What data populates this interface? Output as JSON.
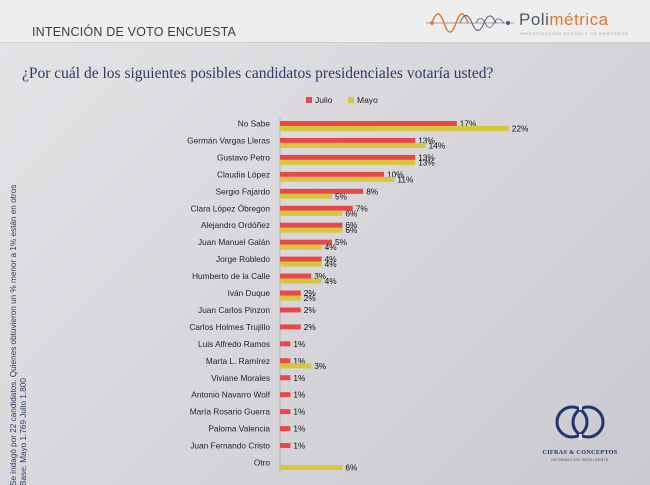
{
  "header": {
    "title": "INTENCIÓN DE VOTO ENCUESTA"
  },
  "logo": {
    "name_main": "Poli",
    "name_accent": "métrica",
    "tagline": "INVESTIGACIÓN SOCIAL Y DE MERCADOS"
  },
  "question": "¿Por cuál de los siguientes posibles candidatos presidenciales votaría usted?",
  "side_note": {
    "line1": "Se indagó por 22 candidatos. Quienes obtuvieron un % menor a 1% están en otros",
    "line2": "Base: Mayo 1.769 Julio 1.800"
  },
  "brand": {
    "name": "CIFRAS & CONCEPTOS",
    "tagline": "INFORMACIÓN INTELIGENTE"
  },
  "colors": {
    "julio": "#e84848",
    "mayo": "#d5c63e"
  },
  "chart_data": {
    "type": "bar",
    "orientation": "horizontal",
    "title": "¿Por cuál de los siguientes posibles candidatos presidenciales votaría usted?",
    "legend_position": "top",
    "unit": "%",
    "xlim": [
      0,
      22
    ],
    "categories": [
      "No Sabe",
      "Germán Vargas Lleras",
      "Gustavo Petro",
      "Claudia López",
      "Sergio Fajardo",
      "Clara López Óbregon",
      "Alejandro Ordóñez",
      "Juan Manuel Galán",
      "Jorge Robledo",
      "Humberto de la Calle",
      "Iván Duque",
      "Juan Carlos Pinzon",
      "Carlos Holmes Trujillo",
      "Luis Alfredo Ramos",
      "Marta L. Ramírez",
      "Viviane Morales",
      "Antonio Navarro Wolf",
      "María Rosario Guerra",
      "Paloma Valencia",
      "Juan Fernando Cristo",
      "Otro"
    ],
    "series": [
      {
        "name": "Julio",
        "values": [
          17,
          13,
          13,
          10,
          8,
          7,
          6,
          5,
          4,
          3,
          2,
          2,
          2,
          1,
          1,
          1,
          1,
          1,
          1,
          1,
          null
        ]
      },
      {
        "name": "Mayo",
        "values": [
          22,
          14,
          13,
          11,
          5,
          6,
          6,
          4,
          4,
          4,
          2,
          null,
          null,
          null,
          3,
          null,
          null,
          null,
          null,
          null,
          6
        ]
      }
    ]
  }
}
